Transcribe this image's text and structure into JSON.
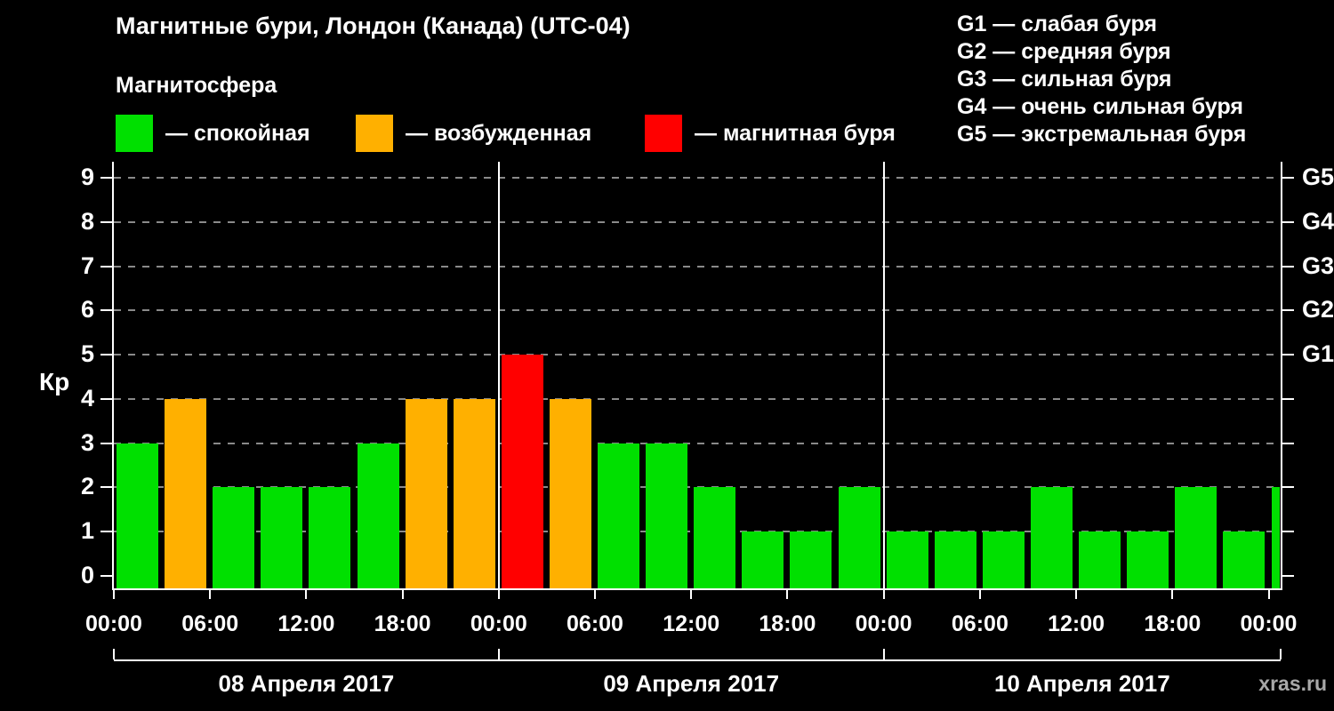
{
  "colors": {
    "background": "#000000",
    "quiet": "#00e000",
    "unsettled": "#ffb000",
    "storm": "#ff0000",
    "grid": "#8a8a8a",
    "axis": "#ffffff",
    "text": "#ffffff",
    "watermark": "#a8a8a8"
  },
  "header": {
    "title": "Магнитные бури, Лондон (Канада) (UTC-04)",
    "subtitle": "Магнитосфера"
  },
  "legend": {
    "items": [
      {
        "label": "— спокойная",
        "color_key": "quiet"
      },
      {
        "label": "— возбужденная",
        "color_key": "unsettled"
      },
      {
        "label": "— магнитная буря",
        "color_key": "storm"
      }
    ]
  },
  "storm_scale_legend": [
    "G1 — слабая буря",
    "G2 — средняя буря",
    "G3 — сильная буря",
    "G4 — очень сильная буря",
    "G5 — экстремальная буря"
  ],
  "watermark": "xras.ru",
  "chart_data": {
    "type": "bar",
    "title": "Магнитные бури, Лондон (Канада) (UTC-04)",
    "ylabel": "Кр",
    "ylim": [
      0,
      9
    ],
    "yticks": [
      0,
      1,
      2,
      3,
      4,
      5,
      6,
      7,
      8,
      9
    ],
    "interval_hours": 3,
    "grid": "dashed horizontal at integer Kp levels",
    "right_axis_labels": [
      {
        "value": 5,
        "label": "G1"
      },
      {
        "value": 6,
        "label": "G2"
      },
      {
        "value": 7,
        "label": "G3"
      },
      {
        "value": 8,
        "label": "G4"
      },
      {
        "value": 9,
        "label": "G5"
      }
    ],
    "x_tick_labels": [
      "00:00",
      "06:00",
      "12:00",
      "18:00",
      "00:00",
      "06:00",
      "12:00",
      "18:00",
      "00:00",
      "06:00",
      "12:00",
      "18:00",
      "00:00"
    ],
    "days": [
      {
        "date": "08 Апреля 2017",
        "values": [
          3,
          4,
          2,
          2,
          2,
          3,
          4,
          4
        ]
      },
      {
        "date": "09 Апреля 2017",
        "values": [
          5,
          4,
          3,
          3,
          2,
          1,
          1,
          2
        ]
      },
      {
        "date": "10 Апреля 2017",
        "values": [
          1,
          1,
          1,
          2,
          1,
          1,
          2,
          1
        ]
      }
    ],
    "next_period_partial_value": 2,
    "color_rule": {
      "quiet_max": 3,
      "unsettled_max": 4,
      "storm_min": 5
    }
  }
}
